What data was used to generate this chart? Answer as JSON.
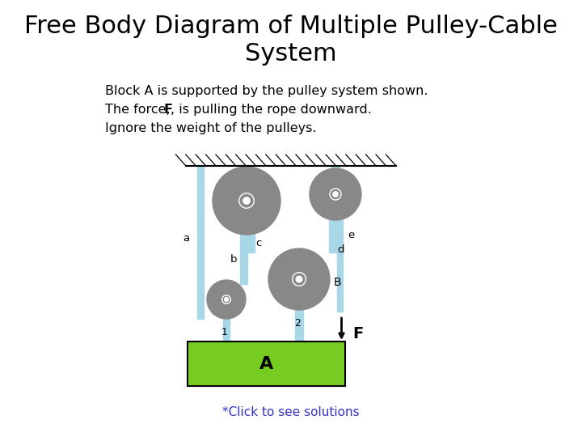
{
  "title_line1": "Free Body Diagram of Multiple Pulley-Cable",
  "title_line2": "System",
  "subtitle_lines": [
    "Block A is supported by the pulley system shown.",
    "The force, F, is pulling the rope downward.",
    "Ignore the weight of the pulleys."
  ],
  "footer": "*Click to see solutions",
  "bg_color": "#ffffff",
  "title_fontsize": 22,
  "subtitle_fontsize": 11.5,
  "footer_color": "#3333cc",
  "pulley_color": "#888888",
  "cable_color": "#a8d8e8",
  "block_color": "#77cc22",
  "block_edge_color": "#000000"
}
